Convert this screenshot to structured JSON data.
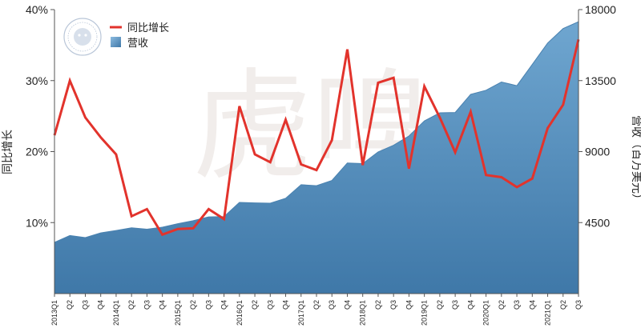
{
  "chart_data": {
    "type": "area+line",
    "categories": [
      "2013Q1",
      "Q2",
      "Q3",
      "Q4",
      "2014Q1",
      "Q2",
      "Q3",
      "Q4",
      "2015Q1",
      "Q2",
      "Q3",
      "Q4",
      "2016Q1",
      "Q2",
      "Q3",
      "Q4",
      "2017Q1",
      "Q2",
      "Q3",
      "Q4",
      "2018Q1",
      "Q2",
      "Q3",
      "Q4",
      "2019Q1",
      "Q2",
      "Q3",
      "Q4",
      "2020Q1",
      "Q2",
      "Q3",
      "Q4",
      "2021Q1",
      "Q2",
      "Q3"
    ],
    "series": [
      {
        "name": "同比增长",
        "type": "line",
        "axis": "left",
        "color": "#e2332c",
        "values": [
          22.3,
          30.0,
          24.8,
          22.0,
          19.6,
          10.9,
          11.9,
          8.3,
          9.1,
          9.2,
          11.9,
          10.5,
          26.4,
          19.6,
          18.5,
          24.5,
          18.2,
          17.4,
          21.6,
          34.4,
          18.1,
          29.7,
          30.4,
          17.6,
          29.2,
          24.8,
          19.9,
          25.6,
          16.7,
          16.4,
          15.0,
          16.2,
          23.3,
          26.6,
          35.8
        ]
      },
      {
        "name": "营收",
        "type": "area",
        "axis": "right",
        "color": "#5b93c0",
        "values": [
          3250,
          3680,
          3550,
          3850,
          4000,
          4170,
          4080,
          4210,
          4430,
          4620,
          4860,
          4880,
          5780,
          5750,
          5730,
          6040,
          6900,
          6840,
          7170,
          8280,
          8240,
          8980,
          9400,
          9990,
          10940,
          11460,
          11480,
          12630,
          12890,
          13410,
          13180,
          14520,
          15880,
          16800,
          17230
        ]
      }
    ],
    "y_left": {
      "label": "同比增长",
      "min": 0,
      "max": 40,
      "ticks": [
        "10%",
        "20%",
        "30%",
        "40%"
      ],
      "tick_values": [
        10,
        20,
        30,
        40
      ]
    },
    "y_right": {
      "label": "营收（百万美元）",
      "min": 0,
      "max": 18000,
      "ticks": [
        "4500",
        "9000",
        "13500",
        "18000"
      ],
      "tick_values": [
        4500,
        9000,
        13500,
        18000
      ]
    },
    "legend": {
      "position": "top-left"
    },
    "grid": false,
    "watermark": "虎嗅"
  }
}
